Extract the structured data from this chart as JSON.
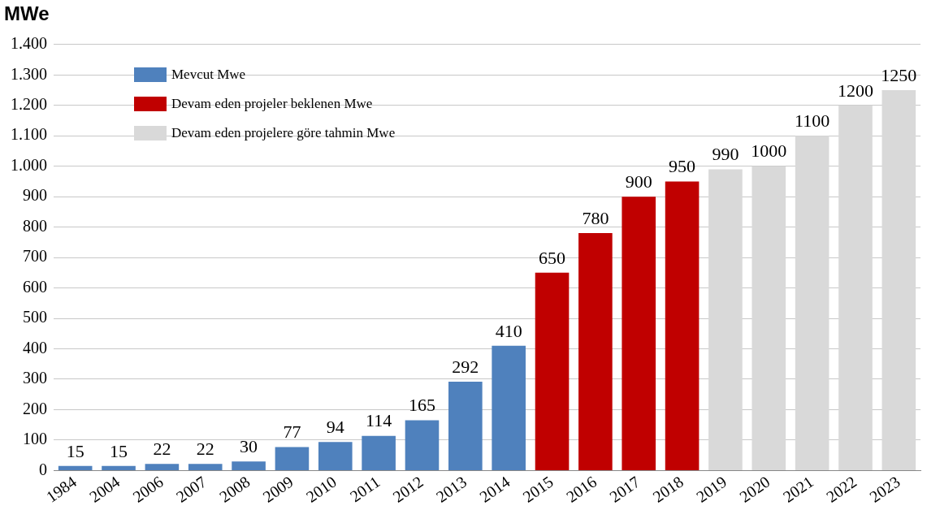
{
  "chart_data": {
    "type": "bar",
    "title": "MWe",
    "categories": [
      "1984",
      "2004",
      "2006",
      "2007",
      "2008",
      "2009",
      "2010",
      "2011",
      "2012",
      "2013",
      "2014",
      "2015",
      "2016",
      "2017",
      "2018",
      "2019",
      "2020",
      "2021",
      "2022",
      "2023"
    ],
    "series": [
      {
        "name": "Mevcut Mwe",
        "color": "#4f81bd",
        "values": [
          15,
          15,
          22,
          22,
          30,
          77,
          94,
          114,
          165,
          292,
          410,
          null,
          null,
          null,
          null,
          null,
          null,
          null,
          null,
          null
        ]
      },
      {
        "name": "Devam eden projeler beklenen Mwe",
        "color": "#c00000",
        "values": [
          null,
          null,
          null,
          null,
          null,
          null,
          null,
          null,
          null,
          null,
          null,
          650,
          780,
          900,
          950,
          null,
          null,
          null,
          null,
          null
        ]
      },
      {
        "name": "Devam eden projelere göre tahmin Mwe",
        "color": "#d9d9d9",
        "values": [
          null,
          null,
          null,
          null,
          null,
          null,
          null,
          null,
          null,
          null,
          null,
          null,
          null,
          null,
          null,
          990,
          1000,
          1100,
          1200,
          1250
        ]
      }
    ],
    "ylim": [
      0,
      1400
    ],
    "yticks": [
      0,
      {
        "value": 100,
        "label": "100"
      },
      {
        "value": 200,
        "label": "200"
      },
      {
        "value": 300,
        "label": "300"
      },
      {
        "value": 400,
        "label": "400"
      },
      {
        "value": 500,
        "label": "500"
      },
      {
        "value": 600,
        "label": "600"
      },
      {
        "value": 700,
        "label": "700"
      },
      {
        "value": 800,
        "label": "800"
      },
      {
        "value": 900,
        "label": "900"
      },
      {
        "value": 1000,
        "label": "1.000"
      },
      {
        "value": 1100,
        "label": "1.100"
      },
      {
        "value": 1200,
        "label": "1.200"
      },
      {
        "value": 1300,
        "label": "1.300"
      },
      {
        "value": 1400,
        "label": "1.400"
      }
    ],
    "grid": "y",
    "legend": "top left",
    "data_labels": true
  }
}
